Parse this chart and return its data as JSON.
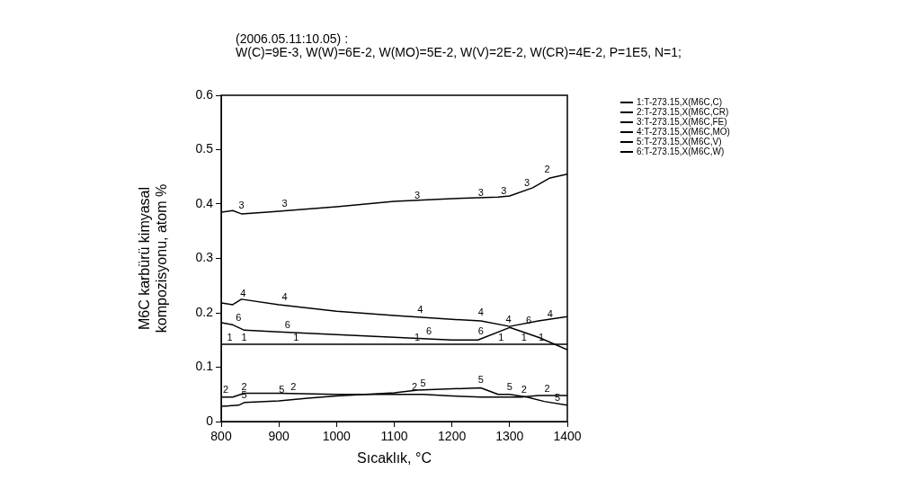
{
  "chart_data": {
    "type": "line",
    "title": "(2006.05.11:10.05) :",
    "subtitle": "W(C)=9E-3, W(W)=6E-2, W(MO)=5E-2, W(V)=2E-2, W(CR)=4E-2, P=1E5, N=1;",
    "xlabel": "Sıcaklık, °C",
    "ylabel": "M6C karbürü kimyasal kompozisyonu, atom %",
    "annotations": [
      {
        "text": "3",
        "x": 835,
        "y": 0.39
      },
      {
        "text": "3",
        "x": 910,
        "y": 0.392
      },
      {
        "text": "3",
        "x": 1140,
        "y": 0.408
      },
      {
        "text": "3",
        "x": 1250,
        "y": 0.413
      },
      {
        "text": "3",
        "x": 1290,
        "y": 0.415
      },
      {
        "text": "3",
        "x": 1330,
        "y": 0.43
      },
      {
        "text": "2",
        "x": 1365,
        "y": 0.455
      },
      {
        "text": "4",
        "x": 838,
        "y": 0.228
      },
      {
        "text": "4",
        "x": 910,
        "y": 0.22
      },
      {
        "text": "4",
        "x": 1145,
        "y": 0.197
      },
      {
        "text": "4",
        "x": 1250,
        "y": 0.192
      },
      {
        "text": "4",
        "x": 1298,
        "y": 0.18
      },
      {
        "text": "4",
        "x": 1370,
        "y": 0.19
      },
      {
        "text": "6",
        "x": 830,
        "y": 0.183
      },
      {
        "text": "6",
        "x": 915,
        "y": 0.17
      },
      {
        "text": "6",
        "x": 1160,
        "y": 0.158
      },
      {
        "text": "6",
        "x": 1250,
        "y": 0.158
      },
      {
        "text": "6",
        "x": 1333,
        "y": 0.177
      },
      {
        "text": "1",
        "x": 815,
        "y": 0.147
      },
      {
        "text": "1",
        "x": 840,
        "y": 0.147
      },
      {
        "text": "1",
        "x": 930,
        "y": 0.147
      },
      {
        "text": "1",
        "x": 1140,
        "y": 0.147
      },
      {
        "text": "1",
        "x": 1285,
        "y": 0.147
      },
      {
        "text": "1",
        "x": 1325,
        "y": 0.147
      },
      {
        "text": "1",
        "x": 1355,
        "y": 0.147
      },
      {
        "text": "2",
        "x": 808,
        "y": 0.05
      },
      {
        "text": "2",
        "x": 840,
        "y": 0.056
      },
      {
        "text": "2",
        "x": 925,
        "y": 0.056
      },
      {
        "text": "2",
        "x": 1135,
        "y": 0.055
      },
      {
        "text": "2",
        "x": 1325,
        "y": 0.05
      },
      {
        "text": "2",
        "x": 1365,
        "y": 0.052
      },
      {
        "text": "5",
        "x": 840,
        "y": 0.04
      },
      {
        "text": "5",
        "x": 905,
        "y": 0.05
      },
      {
        "text": "5",
        "x": 1150,
        "y": 0.062
      },
      {
        "text": "5",
        "x": 1250,
        "y": 0.068
      },
      {
        "text": "5",
        "x": 1300,
        "y": 0.056
      },
      {
        "text": "5",
        "x": 1383,
        "y": 0.035
      }
    ],
    "xlim": [
      800,
      1400
    ],
    "xticks": [
      800,
      900,
      1000,
      1100,
      1200,
      1300,
      1400
    ],
    "ylim": [
      0,
      0.6
    ],
    "yticks": [
      0,
      0.1,
      0.2,
      0.3,
      0.4,
      0.5,
      0.6
    ],
    "grid": false,
    "legend": "right",
    "marker": "none",
    "line_style": "solid",
    "series": [
      {
        "name": "1:T-273.15,X(M6C,C)",
        "color": "#000000",
        "x": [
          800,
          1400
        ],
        "values": [
          0.142,
          0.142
        ]
      },
      {
        "name": "2:T-273.15,X(M6C,CR)",
        "color": "#000000",
        "x": [
          800,
          820,
          840,
          900,
          1000,
          1100,
          1150,
          1200,
          1250,
          1300,
          1320,
          1350,
          1400
        ],
        "values": [
          0.045,
          0.045,
          0.052,
          0.052,
          0.05,
          0.05,
          0.05,
          0.047,
          0.045,
          0.045,
          0.045,
          0.048,
          0.048
        ]
      },
      {
        "name": "3:T-273.15,X(M6C,FE)",
        "color": "#000000",
        "x": [
          800,
          820,
          835,
          880,
          1000,
          1100,
          1200,
          1280,
          1300,
          1340,
          1370,
          1400
        ],
        "values": [
          0.385,
          0.388,
          0.382,
          0.385,
          0.395,
          0.405,
          0.41,
          0.413,
          0.415,
          0.43,
          0.448,
          0.455
        ]
      },
      {
        "name": "4:T-273.15,X(M6C,MO)",
        "color": "#000000",
        "x": [
          800,
          820,
          835,
          900,
          1000,
          1100,
          1200,
          1250,
          1300,
          1350,
          1400
        ],
        "values": [
          0.218,
          0.215,
          0.225,
          0.215,
          0.203,
          0.195,
          0.188,
          0.185,
          0.175,
          0.185,
          0.193
        ]
      },
      {
        "name": "5:T-273.15,X(M6C,V)",
        "color": "#000000",
        "x": [
          800,
          830,
          840,
          900,
          950,
          1000,
          1100,
          1140,
          1250,
          1280,
          1300,
          1330,
          1360,
          1400
        ],
        "values": [
          0.028,
          0.03,
          0.035,
          0.038,
          0.043,
          0.047,
          0.053,
          0.058,
          0.062,
          0.05,
          0.05,
          0.045,
          0.037,
          0.03
        ]
      },
      {
        "name": "6:T-273.15,X(M6C,W)",
        "color": "#000000",
        "x": [
          800,
          820,
          840,
          900,
          1000,
          1100,
          1200,
          1245,
          1300,
          1350,
          1400
        ],
        "values": [
          0.182,
          0.178,
          0.168,
          0.165,
          0.16,
          0.155,
          0.15,
          0.15,
          0.173,
          0.155,
          0.132
        ]
      }
    ]
  }
}
